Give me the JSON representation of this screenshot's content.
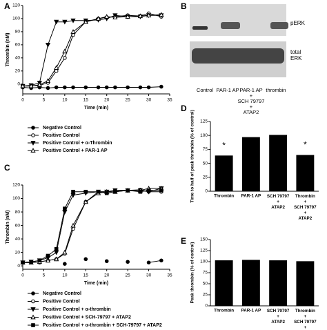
{
  "chart_data": [
    {
      "type": "line",
      "panel": "A",
      "ylabel": "Thrombin (nM)",
      "xlabel": "Time (min)",
      "xlim": [
        0,
        35
      ],
      "xticks": [
        0,
        5,
        10,
        15,
        20,
        25,
        30,
        35
      ],
      "ylim": [
        -15,
        120
      ],
      "yticks": [
        0,
        20,
        40,
        60,
        80,
        100,
        120
      ],
      "x": [
        0,
        2,
        4,
        6,
        8,
        10,
        12,
        15,
        18,
        20,
        22,
        25,
        28,
        30,
        33
      ],
      "series": [
        {
          "name": "Negative Control",
          "marker": "filled-circle",
          "color": "#000000",
          "values": [
            -5,
            -6,
            -5,
            -6,
            -5,
            -5,
            -5,
            -5,
            -5,
            -5,
            -5,
            -5,
            -5,
            -5,
            -4
          ]
        },
        {
          "name": "Positive Control",
          "marker": "open-circle",
          "color": "#000000",
          "values": [
            -3,
            -3,
            -2,
            2,
            20,
            40,
            75,
            95,
            100,
            102,
            103,
            105,
            104,
            108,
            103
          ]
        },
        {
          "name": "Positive Control + α-Thrombin",
          "marker": "filled-triangle-down",
          "color": "#000000",
          "values": [
            -3,
            -2,
            2,
            60,
            95,
            95,
            97,
            97,
            98,
            100,
            105,
            103,
            103,
            105,
            105
          ]
        },
        {
          "name": "Positive Control + PAR-1 AP",
          "marker": "open-triangle-up",
          "color": "#000000",
          "values": [
            -3,
            -3,
            -1,
            5,
            25,
            50,
            80,
            95,
            100,
            103,
            102,
            103,
            104,
            105,
            106
          ]
        }
      ]
    },
    {
      "type": "line",
      "panel": "C",
      "ylabel": "Thrombin (nM)",
      "xlabel": "Time (min)",
      "xlim": [
        0,
        35
      ],
      "xticks": [
        0,
        5,
        10,
        15,
        20,
        25,
        30,
        35
      ],
      "ylim": [
        -5,
        120
      ],
      "yticks": [
        0,
        20,
        40,
        60,
        80,
        100,
        120
      ],
      "x": [
        0,
        2,
        4,
        6,
        8,
        10,
        12,
        15,
        18,
        20,
        22,
        25,
        28,
        30,
        33
      ],
      "series": [
        {
          "name": "Negative Control",
          "marker": "filled-circle",
          "color": "#000000",
          "values": [
            5,
            null,
            5,
            null,
            null,
            3,
            null,
            10,
            null,
            7,
            null,
            6,
            null,
            5,
            8
          ]
        },
        {
          "name": "Positive Control",
          "marker": "open-circle",
          "color": "#000000",
          "values": [
            5,
            5,
            6,
            8,
            10,
            18,
            55,
            95,
            110,
            110,
            112,
            112,
            113,
            110,
            110
          ]
        },
        {
          "name": "Positive Control + α-thrombin",
          "marker": "filled-triangle-down",
          "color": "#000000",
          "values": [
            5,
            6,
            8,
            12,
            20,
            80,
            105,
            108,
            110,
            110,
            112,
            112,
            112,
            110,
            115
          ]
        },
        {
          "name": "Positive Control + SCH-79797 + ATAP2",
          "marker": "open-triangle-up",
          "color": "#000000",
          "values": [
            5,
            5,
            6,
            8,
            10,
            20,
            60,
            95,
            108,
            110,
            110,
            112,
            112,
            115,
            115
          ]
        },
        {
          "name": "Positive Control + α-thrombin + SCH-79797 + ATAP2",
          "marker": "filled-square",
          "color": "#000000",
          "values": [
            5,
            6,
            8,
            15,
            25,
            85,
            110,
            110,
            110,
            108,
            110,
            112,
            110,
            112,
            112
          ]
        }
      ]
    },
    {
      "type": "bar",
      "panel": "D",
      "ylabel": "Time to half of peak thrombin (% of control)",
      "color": "#000000",
      "ylim": [
        0,
        125
      ],
      "yticks": [
        0,
        25,
        50,
        75,
        100,
        125
      ],
      "categories": [
        "Thrombin",
        "PAR-1 AP",
        "SCH 79797\n+\nATAP2",
        "Thrombin\n+\nSCH 79797\n+\nATAP2"
      ],
      "values": [
        64,
        97,
        101,
        65
      ],
      "annotations": [
        "*",
        null,
        null,
        "*"
      ]
    },
    {
      "type": "bar",
      "panel": "E",
      "ylabel": "Peak thrombin (% of control)",
      "color": "#000000",
      "ylim": [
        0,
        150
      ],
      "yticks": [
        0,
        25,
        50,
        75,
        100,
        125,
        150
      ],
      "categories": [
        "Thrombin",
        "PAR-1 AP",
        "SCH 79797\n+\nATAP2",
        "Thrombin\n+\nSCH 79797\n+\nATAP2"
      ],
      "values": [
        103,
        104,
        103,
        101
      ]
    }
  ],
  "blot": {
    "panel": "B",
    "bands": [
      "pERK",
      "total ERK"
    ],
    "lanes": [
      "Control",
      "PAR-1 AP",
      "PAR-1 AP\n+\nSCH 79797\n+\nATAP2",
      "thrombin"
    ]
  }
}
